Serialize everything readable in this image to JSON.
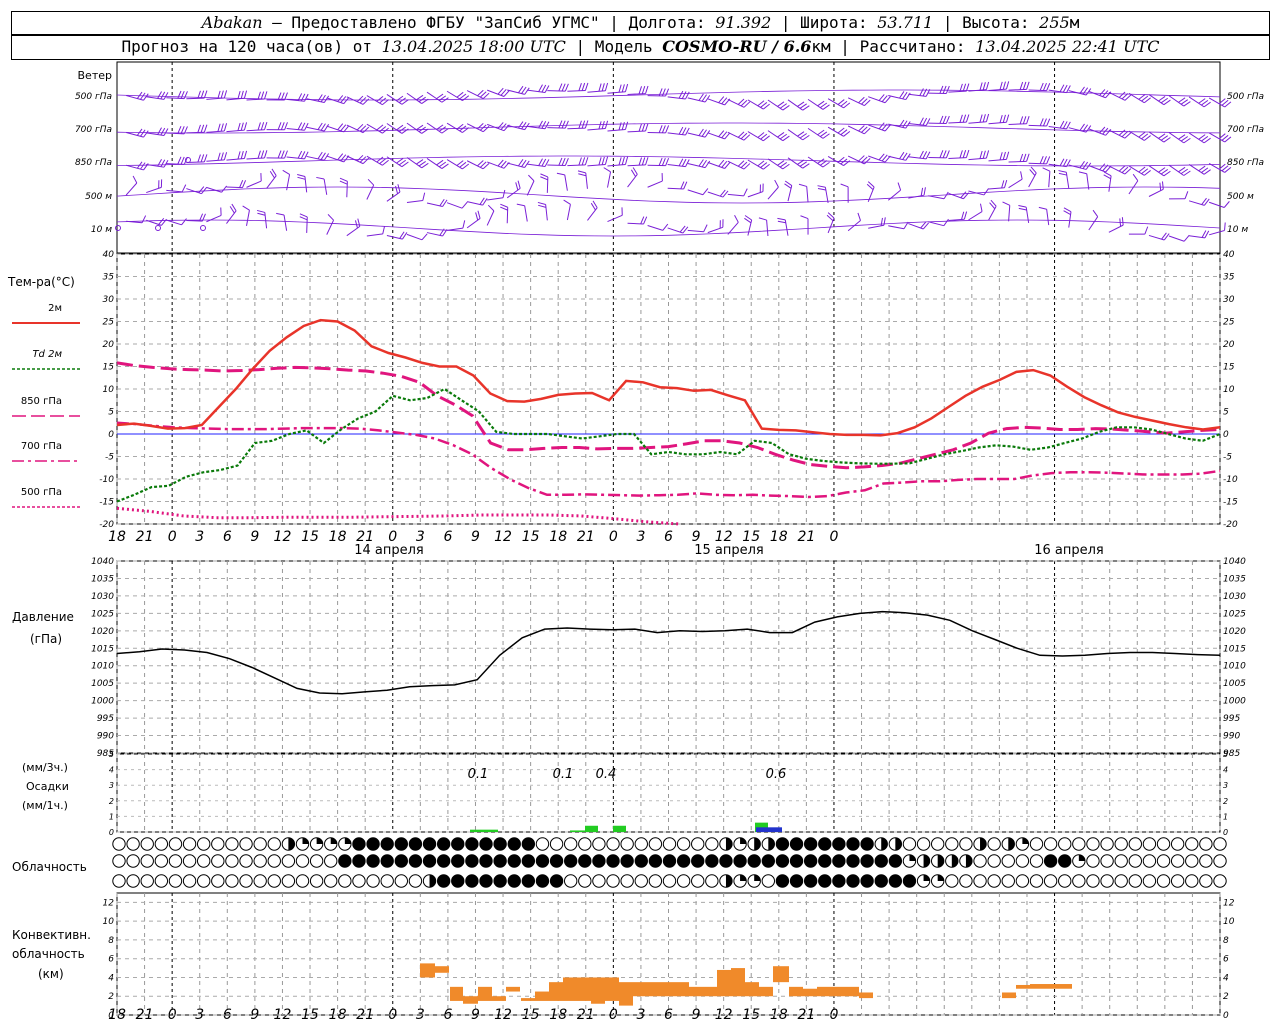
{
  "header": {
    "station": "Abakan",
    "provider": " — Предоставлено ФГБУ \"ЗапСиб УГМС\" | Долгота: ",
    "lon": "91.392",
    "lat_label": " | Широта: ",
    "lat": "53.711",
    "alt_label": " | Высота: ",
    "alt": "255",
    "alt_unit": "м",
    "forecast_label": "Прогноз на 120 часа(ов) от ",
    "forecast_start": "13.04.2025 18:00 UTC",
    "model_label": "  | Модель ",
    "model": "COSMO-RU / 6.6",
    "model_unit": "км",
    "calc_label": " | Рассчитано: ",
    "calc_time": "13.04.2025 22:41 UTC"
  },
  "labels": {
    "wind": "Ветер",
    "wind_levels": [
      "500 гПа",
      "700 гПа",
      "850 гПа",
      "500 м",
      "10   м"
    ],
    "temp": "Тем-ра(°C)",
    "legend": [
      "2м",
      "Td  2м",
      "850 гПа",
      "700 гПа",
      "500 гПа"
    ],
    "pressure": [
      "Давление",
      "(гПа)"
    ],
    "precip": [
      "(мм/3ч.)",
      "Осадки",
      "(мм/1ч.)"
    ],
    "cloud": "Облачность",
    "conv": [
      "Конвективн.",
      "облачность",
      "(км)"
    ]
  },
  "colors": {
    "t2m": "#e8342a",
    "td": "#0a7a0a",
    "t850": "#e0157e",
    "wind": "#7a1fd6",
    "zero": "#2020ff",
    "pressure": "#000000",
    "precip3h": "#22cc22",
    "precip1h": "#2233cc",
    "conv": "#f08a2a"
  },
  "chart_data": [
    {
      "type": "line",
      "name": "temperature",
      "x_ticks": [
        "18",
        "21",
        "0",
        "3",
        "6",
        "9",
        "12",
        "15",
        "18",
        "21",
        "0",
        "3",
        "6",
        "9",
        "12",
        "15",
        "18",
        "21",
        "0",
        "3",
        "6",
        "9",
        "12",
        "15",
        "18",
        "21",
        "0"
      ],
      "day_labels": [
        "14 апреля",
        "15 апреля",
        "16 апреля"
      ],
      "ylim": [
        -20,
        40
      ],
      "yticks": [
        -20,
        -15,
        -10,
        -5,
        0,
        5,
        10,
        15,
        20,
        25,
        30,
        35,
        40
      ],
      "x_hours": [
        0,
        3,
        6,
        9,
        12,
        15,
        18,
        21,
        24,
        27,
        30,
        33,
        36,
        39,
        42,
        45,
        48,
        51,
        54,
        57,
        60,
        63,
        66,
        69,
        72,
        75,
        78,
        81,
        84,
        87,
        90,
        93,
        96,
        99,
        102,
        105,
        108,
        111,
        114,
        117,
        120,
        123,
        126,
        129,
        132,
        135,
        138,
        141,
        144,
        147,
        150,
        153,
        156,
        159,
        162,
        165,
        168,
        171,
        174,
        177,
        180,
        183,
        186,
        189,
        192,
        195,
        198,
        201,
        204,
        207,
        210,
        213,
        216,
        219,
        222,
        225,
        228,
        231,
        234
      ],
      "series": [
        {
          "name": "2м",
          "key": "t2m",
          "style": "solid",
          "hours": [
            0,
            6,
            12,
            18,
            24,
            30,
            36,
            42,
            48,
            54,
            60,
            66,
            72,
            78,
            84,
            90,
            96,
            102,
            108,
            114,
            120,
            126,
            132,
            138,
            144,
            150,
            156,
            162,
            168,
            174,
            180,
            186,
            192,
            198,
            204,
            210,
            216,
            222,
            228,
            234
          ],
          "values": [
            2,
            2.2,
            1.5,
            1,
            2,
            3,
            7,
            12,
            16,
            19.5,
            22,
            24,
            25,
            25,
            23,
            19.5,
            18,
            17,
            16,
            15.2,
            14.5,
            12,
            9,
            7.5,
            7.2,
            7.5,
            8.5,
            9,
            8.8,
            7.5,
            11.5,
            11,
            10.3,
            10,
            9.5,
            9.5,
            8.5,
            7,
            1,
            0.8
          ]
        },
        {
          "name": "Td 2м",
          "key": "td",
          "style": "dotted",
          "values": []
        },
        {
          "name": "850 гПа",
          "key": "t850",
          "style": "dashed",
          "values": []
        },
        {
          "name": "700 гПа",
          "key": "t700",
          "style": "dashdot",
          "values": []
        },
        {
          "name": "500 гПа",
          "key": "t500",
          "style": "dotfine",
          "values": []
        }
      ]
    },
    {
      "type": "line",
      "name": "pressure",
      "ylim": [
        985,
        1040
      ],
      "yticks": [
        985,
        990,
        995,
        1000,
        1005,
        1010,
        1015,
        1020,
        1025,
        1030,
        1035,
        1040
      ],
      "values": [
        1013.5,
        1014,
        1014.8,
        1014.5,
        1013.8,
        1012,
        1009.5,
        1006.5,
        1003.5,
        1002.2,
        1002,
        1002.5,
        1003,
        1004,
        1004.3,
        1004.5,
        1006,
        1013,
        1018,
        1020.5,
        1020.8,
        1020.5,
        1020.3,
        1020.5,
        1019.5,
        1020,
        1019.8,
        1020,
        1020.5,
        1019.5,
        1019.5,
        1022.5,
        1024,
        1025,
        1025.5,
        1025.2,
        1024.5,
        1023,
        1020,
        1017.5,
        1015,
        1013,
        1012.8,
        1013,
        1013.5,
        1013.8,
        1013.8,
        1013.5,
        1013.2,
        1013
      ]
    },
    {
      "type": "bar",
      "name": "precipitation",
      "ylim": [
        0,
        5
      ],
      "yticks": [
        0,
        1,
        2,
        3,
        4,
        5
      ],
      "annotations": [
        "0.1",
        "0.1",
        "0.4",
        "0.6"
      ]
    },
    {
      "type": "bar",
      "name": "convective_cloud",
      "ylim": [
        0,
        13
      ],
      "yticks": [
        0,
        2,
        4,
        6,
        8,
        10,
        12
      ]
    }
  ]
}
